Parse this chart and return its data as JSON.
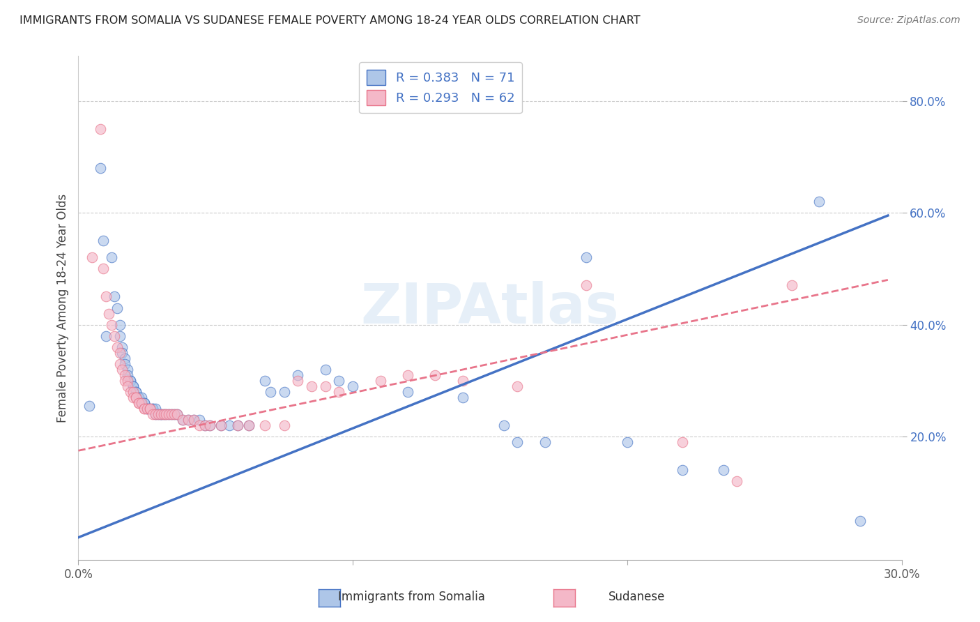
{
  "title": "IMMIGRANTS FROM SOMALIA VS SUDANESE FEMALE POVERTY AMONG 18-24 YEAR OLDS CORRELATION CHART",
  "source": "Source: ZipAtlas.com",
  "ylabel": "Female Poverty Among 18-24 Year Olds",
  "xlim": [
    0.0,
    0.3
  ],
  "ylim": [
    -0.02,
    0.88
  ],
  "xticks": [
    0.0,
    0.1,
    0.2,
    0.3
  ],
  "xticklabels": [
    "0.0%",
    "",
    "",
    "30.0%"
  ],
  "yticks": [
    0.2,
    0.4,
    0.6,
    0.8
  ],
  "yticklabels": [
    "20.0%",
    "40.0%",
    "60.0%",
    "80.0%"
  ],
  "somalia_color": "#aec6e8",
  "sudanese_color": "#f4b8c8",
  "somalia_line_color": "#4472c4",
  "sudanese_line_color": "#e8748a",
  "text_color": "#4472c4",
  "watermark": "ZIPAtlas",
  "somalia_scatter": [
    [
      0.004,
      0.255
    ],
    [
      0.008,
      0.68
    ],
    [
      0.009,
      0.55
    ],
    [
      0.01,
      0.38
    ],
    [
      0.012,
      0.52
    ],
    [
      0.013,
      0.45
    ],
    [
      0.014,
      0.43
    ],
    [
      0.015,
      0.4
    ],
    [
      0.015,
      0.38
    ],
    [
      0.016,
      0.36
    ],
    [
      0.016,
      0.35
    ],
    [
      0.017,
      0.34
    ],
    [
      0.017,
      0.33
    ],
    [
      0.018,
      0.32
    ],
    [
      0.018,
      0.31
    ],
    [
      0.019,
      0.3
    ],
    [
      0.019,
      0.3
    ],
    [
      0.02,
      0.29
    ],
    [
      0.02,
      0.29
    ],
    [
      0.021,
      0.28
    ],
    [
      0.021,
      0.28
    ],
    [
      0.022,
      0.27
    ],
    [
      0.022,
      0.27
    ],
    [
      0.023,
      0.27
    ],
    [
      0.023,
      0.26
    ],
    [
      0.024,
      0.26
    ],
    [
      0.024,
      0.26
    ],
    [
      0.025,
      0.25
    ],
    [
      0.025,
      0.25
    ],
    [
      0.026,
      0.25
    ],
    [
      0.027,
      0.25
    ],
    [
      0.027,
      0.25
    ],
    [
      0.028,
      0.25
    ],
    [
      0.028,
      0.24
    ],
    [
      0.029,
      0.24
    ],
    [
      0.03,
      0.24
    ],
    [
      0.03,
      0.24
    ],
    [
      0.031,
      0.24
    ],
    [
      0.032,
      0.24
    ],
    [
      0.033,
      0.24
    ],
    [
      0.034,
      0.24
    ],
    [
      0.035,
      0.24
    ],
    [
      0.036,
      0.24
    ],
    [
      0.038,
      0.23
    ],
    [
      0.04,
      0.23
    ],
    [
      0.042,
      0.23
    ],
    [
      0.044,
      0.23
    ],
    [
      0.046,
      0.22
    ],
    [
      0.048,
      0.22
    ],
    [
      0.052,
      0.22
    ],
    [
      0.055,
      0.22
    ],
    [
      0.058,
      0.22
    ],
    [
      0.062,
      0.22
    ],
    [
      0.068,
      0.3
    ],
    [
      0.07,
      0.28
    ],
    [
      0.075,
      0.28
    ],
    [
      0.08,
      0.31
    ],
    [
      0.09,
      0.32
    ],
    [
      0.095,
      0.3
    ],
    [
      0.1,
      0.29
    ],
    [
      0.12,
      0.28
    ],
    [
      0.14,
      0.27
    ],
    [
      0.155,
      0.22
    ],
    [
      0.16,
      0.19
    ],
    [
      0.17,
      0.19
    ],
    [
      0.185,
      0.52
    ],
    [
      0.2,
      0.19
    ],
    [
      0.22,
      0.14
    ],
    [
      0.235,
      0.14
    ],
    [
      0.27,
      0.62
    ],
    [
      0.285,
      0.05
    ]
  ],
  "sudanese_scatter": [
    [
      0.005,
      0.52
    ],
    [
      0.008,
      0.75
    ],
    [
      0.009,
      0.5
    ],
    [
      0.01,
      0.45
    ],
    [
      0.011,
      0.42
    ],
    [
      0.012,
      0.4
    ],
    [
      0.013,
      0.38
    ],
    [
      0.014,
      0.36
    ],
    [
      0.015,
      0.35
    ],
    [
      0.015,
      0.33
    ],
    [
      0.016,
      0.32
    ],
    [
      0.017,
      0.31
    ],
    [
      0.017,
      0.3
    ],
    [
      0.018,
      0.3
    ],
    [
      0.018,
      0.29
    ],
    [
      0.019,
      0.28
    ],
    [
      0.02,
      0.28
    ],
    [
      0.02,
      0.27
    ],
    [
      0.021,
      0.27
    ],
    [
      0.021,
      0.27
    ],
    [
      0.022,
      0.26
    ],
    [
      0.022,
      0.26
    ],
    [
      0.023,
      0.26
    ],
    [
      0.024,
      0.25
    ],
    [
      0.024,
      0.25
    ],
    [
      0.025,
      0.25
    ],
    [
      0.026,
      0.25
    ],
    [
      0.026,
      0.25
    ],
    [
      0.027,
      0.24
    ],
    [
      0.028,
      0.24
    ],
    [
      0.029,
      0.24
    ],
    [
      0.03,
      0.24
    ],
    [
      0.031,
      0.24
    ],
    [
      0.032,
      0.24
    ],
    [
      0.033,
      0.24
    ],
    [
      0.034,
      0.24
    ],
    [
      0.035,
      0.24
    ],
    [
      0.036,
      0.24
    ],
    [
      0.038,
      0.23
    ],
    [
      0.04,
      0.23
    ],
    [
      0.042,
      0.23
    ],
    [
      0.044,
      0.22
    ],
    [
      0.046,
      0.22
    ],
    [
      0.048,
      0.22
    ],
    [
      0.052,
      0.22
    ],
    [
      0.058,
      0.22
    ],
    [
      0.062,
      0.22
    ],
    [
      0.068,
      0.22
    ],
    [
      0.075,
      0.22
    ],
    [
      0.08,
      0.3
    ],
    [
      0.085,
      0.29
    ],
    [
      0.09,
      0.29
    ],
    [
      0.095,
      0.28
    ],
    [
      0.11,
      0.3
    ],
    [
      0.12,
      0.31
    ],
    [
      0.13,
      0.31
    ],
    [
      0.14,
      0.3
    ],
    [
      0.16,
      0.29
    ],
    [
      0.185,
      0.47
    ],
    [
      0.22,
      0.19
    ],
    [
      0.24,
      0.12
    ],
    [
      0.26,
      0.47
    ]
  ],
  "somalia_trendline": [
    [
      0.0,
      0.02
    ],
    [
      0.295,
      0.595
    ]
  ],
  "sudanese_trendline": [
    [
      0.0,
      0.175
    ],
    [
      0.295,
      0.48
    ]
  ]
}
